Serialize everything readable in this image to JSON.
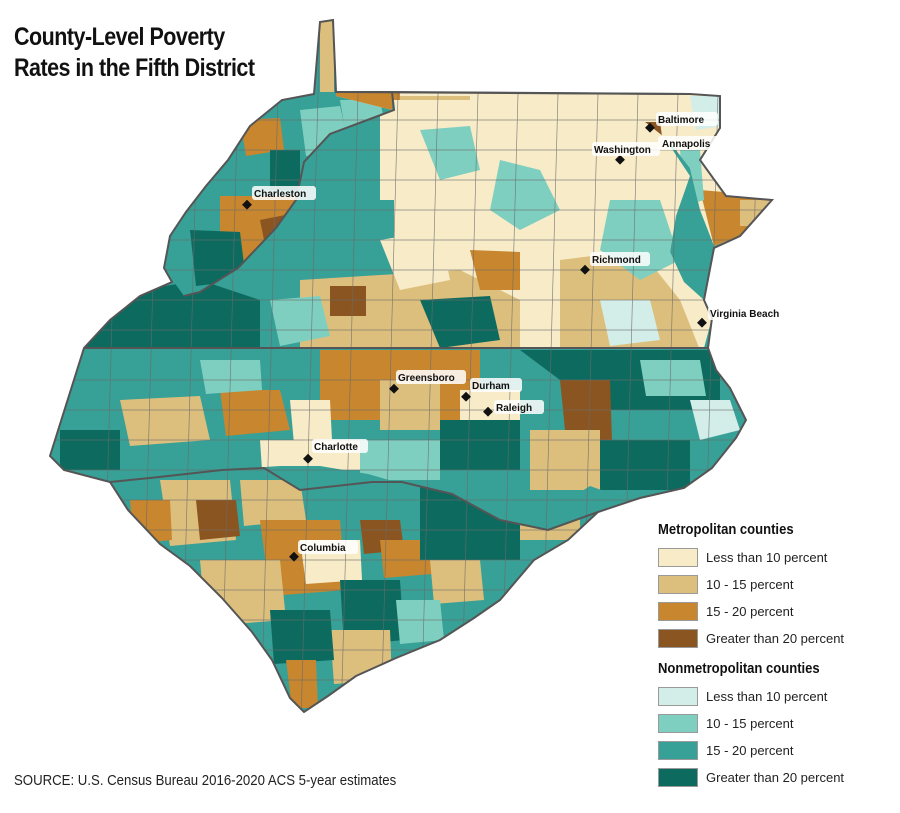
{
  "title_line1": "County-Level Poverty",
  "title_line2": "Rates in the Fifth District",
  "cities": [
    {
      "name": "Baltimore"
    },
    {
      "name": "Washington"
    },
    {
      "name": "Annapolis"
    },
    {
      "name": "Charleston"
    },
    {
      "name": "Richmond"
    },
    {
      "name": "Virginia Beach"
    },
    {
      "name": "Greensboro"
    },
    {
      "name": "Durham"
    },
    {
      "name": "Raleigh"
    },
    {
      "name": "Charlotte"
    },
    {
      "name": "Columbia"
    }
  ],
  "legend": {
    "metro_heading": "Metropolitan counties",
    "metro": [
      {
        "label": "Less than 10 percent",
        "color": "#f7ebc8"
      },
      {
        "label": "10 - 15 percent",
        "color": "#ddbf7d"
      },
      {
        "label": "15 - 20 percent",
        "color": "#c8862f"
      },
      {
        "label": "Greater than 20 percent",
        "color": "#8b5521"
      }
    ],
    "nonmetro_heading": "Nonmetropolitan counties",
    "nonmetro": [
      {
        "label": "Less than 10 percent",
        "color": "#d3ede8"
      },
      {
        "label": "10 - 15 percent",
        "color": "#7fcfc1"
      },
      {
        "label": "15 - 20 percent",
        "color": "#37a097"
      },
      {
        "label": "Greater than 20 percent",
        "color": "#0d6a5f"
      }
    ]
  },
  "source": "SOURCE: U.S. Census Bureau 2016-2020 ACS 5-year estimates"
}
